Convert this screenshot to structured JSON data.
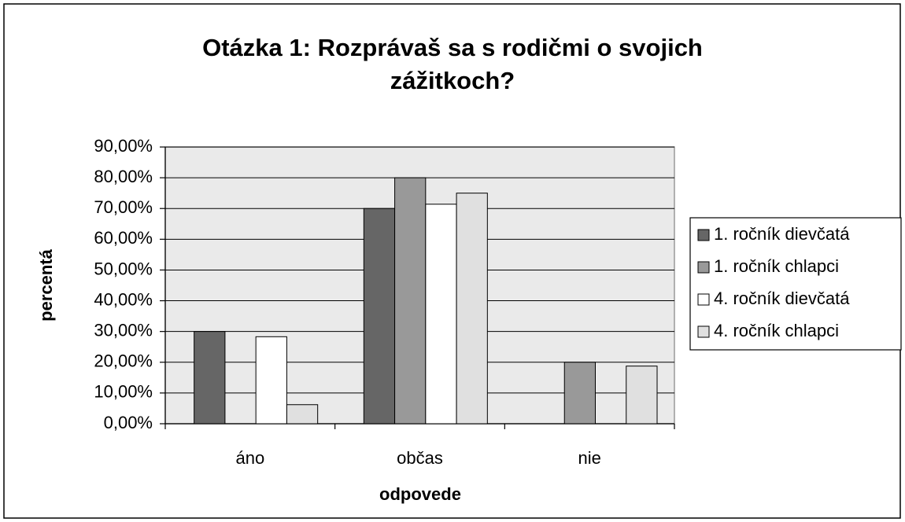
{
  "chart_data": {
    "type": "bar",
    "title": "Otázka 1: Rozprávaš sa s rodičmi o svojich zážitkoch?",
    "x_label": "odpovede",
    "y_label": "percentá",
    "categories": [
      "áno",
      "občas",
      "nie"
    ],
    "series": [
      {
        "name": "1. ročník dievčatá",
        "color": "#666666",
        "values": [
          30,
          70,
          0
        ]
      },
      {
        "name": "1. ročník chlapci",
        "color": "#999999",
        "values": [
          0,
          80,
          20
        ]
      },
      {
        "name": "4. ročník dievčatá",
        "color": "#ffffff",
        "values": [
          28.3,
          71.4,
          0
        ]
      },
      {
        "name": "4. ročník chlapci",
        "color": "#e0e0e0",
        "values": [
          6.2,
          75,
          18.75
        ]
      }
    ],
    "ylim": [
      0,
      90
    ],
    "yticks": [
      {
        "value": 0,
        "label": "0,00%"
      },
      {
        "value": 10,
        "label": "10,00%"
      },
      {
        "value": 20,
        "label": "20,00%"
      },
      {
        "value": 30,
        "label": "30,00%"
      },
      {
        "value": 40,
        "label": "40,00%"
      },
      {
        "value": 50,
        "label": "50,00%"
      },
      {
        "value": 60,
        "label": "60,00%"
      },
      {
        "value": 70,
        "label": "70,00%"
      },
      {
        "value": 80,
        "label": "80,00%"
      },
      {
        "value": 90,
        "label": "90,00%"
      }
    ],
    "grid": true,
    "legend": "right"
  }
}
